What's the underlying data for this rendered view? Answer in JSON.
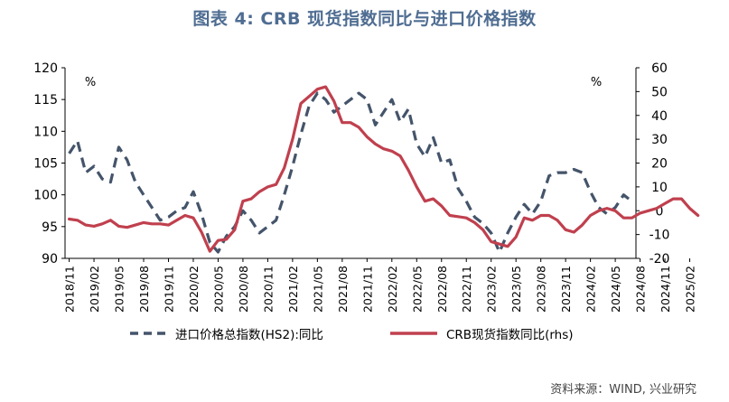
{
  "title": "图表 4:   CRB 现货指数同比与进口价格指数",
  "source": "资料来源：WIND, 兴业研究",
  "chart_data": {
    "type": "line",
    "y_left": {
      "min": 90,
      "max": 120,
      "step": 5,
      "unit": "%"
    },
    "y_right": {
      "min": -20,
      "max": 60,
      "step": 10,
      "unit": "%"
    },
    "x_ticks": [
      "2018/11",
      "2019/02",
      "2019/05",
      "2019/08",
      "2019/11",
      "2020/02",
      "2020/05",
      "2020/08",
      "2020/11",
      "2021/02",
      "2021/05",
      "2021/08",
      "2021/11",
      "2022/02",
      "2022/05",
      "2022/08",
      "2022/11",
      "2023/02",
      "2023/05",
      "2023/08",
      "2023/11",
      "2024/02",
      "2024/05",
      "2024/08",
      "2024/11",
      "2025/02"
    ],
    "grid": false,
    "legend_position": "bottom",
    "series": [
      {
        "name": "进口价格总指数(HS2):同比",
        "axis": "left",
        "style": "dashed",
        "color": "#44546a",
        "values": [
          106.5,
          108.5,
          103.5,
          104.5,
          102.5,
          102,
          107.5,
          105.5,
          102,
          100,
          98,
          96,
          96.5,
          97.5,
          98,
          100.5,
          97,
          92.5,
          91,
          93.5,
          95,
          97.5,
          96,
          94,
          95,
          96,
          100,
          104.5,
          109.5,
          114,
          116,
          115,
          113,
          114,
          115,
          116,
          115,
          111,
          113,
          115,
          111.5,
          113.5,
          108,
          106,
          109,
          105,
          105.5,
          101,
          99,
          96.5,
          95.5,
          94,
          91,
          94,
          96.5,
          98.5,
          97,
          99,
          103,
          103.5,
          103.5,
          104,
          103.5,
          100.5,
          98,
          97,
          98,
          100,
          99
        ]
      },
      {
        "name": "CRB现货指数同比(rhs)",
        "axis": "right",
        "style": "solid",
        "color": "#c0404e",
        "values": [
          -3.5,
          -4,
          -6,
          -6.5,
          -5.5,
          -4,
          -6.5,
          -7,
          -6,
          -5,
          -5.5,
          -5.5,
          -6,
          -4,
          -2,
          -3,
          -9,
          -17,
          -12.5,
          -12,
          -8,
          4,
          5,
          8,
          10,
          11,
          18,
          30,
          45,
          48,
          51,
          52,
          46,
          37,
          37,
          35,
          31,
          28,
          26,
          25,
          23,
          17,
          10,
          4,
          5,
          2,
          -2,
          -2.5,
          -3,
          -5,
          -8,
          -13,
          -14,
          -15,
          -11,
          -3,
          -4,
          -2,
          -2,
          -4,
          -8,
          -9,
          -6,
          -2,
          0,
          1,
          0,
          -3,
          -3,
          -1,
          0,
          1,
          3,
          5,
          5,
          1,
          -2
        ]
      }
    ]
  }
}
